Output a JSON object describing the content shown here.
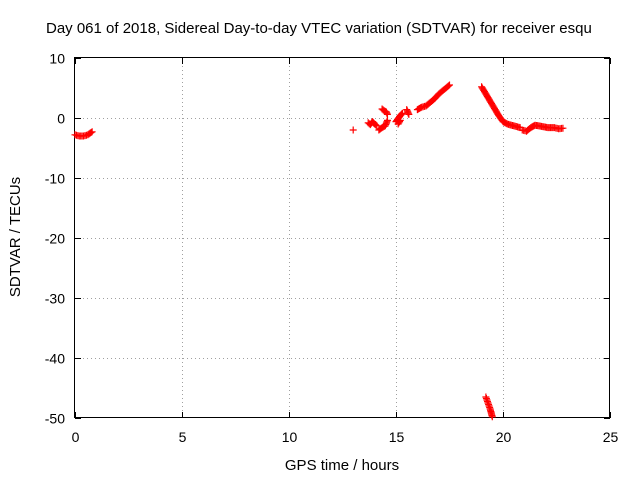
{
  "chart_data": {
    "type": "scatter",
    "title": "Day 061 of 2018, Sidereal Day-to-day VTEC variation (SDTVAR) for receiver esqu",
    "xlabel": "GPS time / hours",
    "ylabel": "SDTVAR / TECUs",
    "xlim": [
      0,
      25
    ],
    "ylim": [
      -50,
      10
    ],
    "x_ticks": [
      0,
      5,
      10,
      15,
      20,
      25
    ],
    "y_ticks": [
      10,
      0,
      -10,
      -20,
      -30,
      -40,
      -50
    ],
    "x_tick_labels": [
      "0",
      "5",
      "10",
      "15",
      "20",
      "25"
    ],
    "y_tick_labels": [
      "10",
      "0",
      "-10",
      "-20",
      "-30",
      "-40",
      "-50"
    ],
    "grid": true,
    "marker": "+",
    "color": "#ff0000",
    "series": [
      {
        "name": "SDTVAR",
        "segments": [
          {
            "x": [
              0.0,
              0.2,
              0.4,
              0.6,
              0.8
            ],
            "y": [
              -2.8,
              -3.0,
              -3.0,
              -2.8,
              -2.3
            ]
          },
          {
            "x": [
              13.0
            ],
            "y": [
              -2.0
            ]
          },
          {
            "x": [
              13.7,
              13.8,
              13.9,
              14.0,
              14.1
            ],
            "y": [
              -0.8,
              -1.1,
              -0.6,
              -1.0,
              -1.3
            ]
          },
          {
            "x": [
              14.2,
              14.35,
              14.5,
              14.6
            ],
            "y": [
              -2.0,
              -1.6,
              -1.3,
              -0.4
            ]
          },
          {
            "x": [
              14.35,
              14.45,
              14.55,
              14.6
            ],
            "y": [
              1.5,
              1.2,
              1.0,
              0.6
            ]
          },
          {
            "x": [
              15.0,
              15.1,
              15.2,
              15.3
            ],
            "y": [
              -0.6,
              -0.1,
              0.4,
              0.8
            ]
          },
          {
            "x": [
              15.1,
              15.2
            ],
            "y": [
              -1.0,
              -0.4
            ]
          },
          {
            "x": [
              15.5,
              15.6
            ],
            "y": [
              1.4,
              0.6
            ]
          },
          {
            "x": [
              16.0,
              16.2,
              16.4,
              16.6,
              16.8,
              17.0,
              17.2,
              17.4,
              17.5
            ],
            "y": [
              1.4,
              1.8,
              2.0,
              2.6,
              3.2,
              4.0,
              4.6,
              5.2,
              5.5
            ]
          },
          {
            "x": [
              19.0,
              19.2,
              19.4,
              19.6,
              19.8,
              20.0,
              20.2,
              20.5,
              20.8
            ],
            "y": [
              5.2,
              4.0,
              2.8,
              1.6,
              0.4,
              -0.6,
              -1.0,
              -1.3,
              -1.6
            ]
          },
          {
            "x": [
              20.9,
              21.1,
              21.3,
              21.5,
              21.8,
              22.1,
              22.4,
              22.6,
              22.8
            ],
            "y": [
              -2.0,
              -2.2,
              -1.6,
              -1.2,
              -1.4,
              -1.6,
              -1.6,
              -1.8,
              -1.7
            ]
          },
          {
            "x": [
              19.2,
              19.3,
              19.4,
              19.5
            ],
            "y": [
              -46.5,
              -47.5,
              -48.5,
              -49.8
            ]
          }
        ]
      }
    ]
  }
}
